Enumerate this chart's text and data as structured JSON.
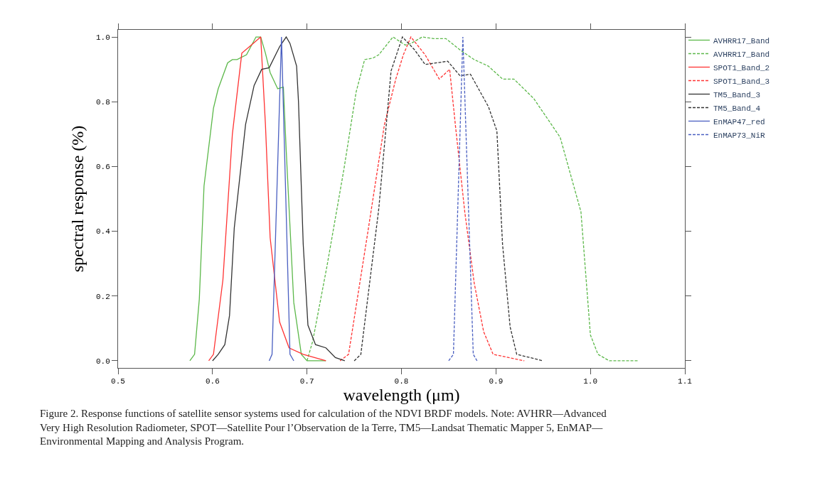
{
  "chart_data": {
    "type": "line",
    "xlabel": "wavelength (μm)",
    "ylabel": "spectral response (%)",
    "xlim": [
      0.5,
      1.1
    ],
    "xticks": [
      0.5,
      0.6,
      0.7,
      0.8,
      0.9,
      {
        "value": 1.0,
        "label": "1.0"
      },
      1.1
    ],
    "ylim": [
      -0.022,
      1.022
    ],
    "yticks": [
      {
        "value": 0,
        "label": "0.0"
      },
      0.2,
      0.4,
      0.6,
      0.8,
      {
        "value": 1.0,
        "label": "1.0"
      }
    ],
    "legend": "top right",
    "marker": "none",
    "series": [
      {
        "name": "AVHRR17_Band",
        "color": "#5cb84a",
        "line_style": "solid",
        "x": [
          0.576,
          0.581,
          0.586,
          0.591,
          0.601,
          0.606,
          0.616,
          0.621,
          0.626,
          0.636,
          0.646,
          0.651,
          0.656,
          0.661,
          0.669,
          0.675,
          0.678,
          0.686,
          0.694,
          0.7,
          0.72
        ],
        "values": [
          0,
          0.02,
          0.19,
          0.54,
          0.78,
          0.84,
          0.92,
          0.93,
          0.93,
          0.945,
          1.0,
          1.0,
          0.95,
          0.89,
          0.84,
          0.845,
          0.65,
          0.18,
          0.02,
          0,
          0
        ]
      },
      {
        "name": "AVHRR17_Band",
        "color": "#5cb84a",
        "line_style": "dashed",
        "x": [
          0.7,
          0.706,
          0.721,
          0.739,
          0.752,
          0.761,
          0.77,
          0.776,
          0.791,
          0.804,
          0.81,
          0.822,
          0.834,
          0.847,
          0.862,
          0.877,
          0.892,
          0.907,
          0.919,
          0.94,
          0.947,
          0.968,
          0.99,
          1.0,
          1.008,
          1.02,
          1.05
        ],
        "values": [
          0,
          0.06,
          0.29,
          0.59,
          0.83,
          0.93,
          0.935,
          0.945,
          1.0,
          0.975,
          0.98,
          1.0,
          0.995,
          0.995,
          0.96,
          0.93,
          0.91,
          0.87,
          0.87,
          0.81,
          0.78,
          0.69,
          0.46,
          0.08,
          0.02,
          0,
          0
        ]
      },
      {
        "name": "SPOT1_Band_2",
        "color": "#ff3333",
        "line_style": "solid",
        "x": [
          0.596,
          0.601,
          0.611,
          0.621,
          0.631,
          0.641,
          0.651,
          0.656,
          0.661,
          0.671,
          0.681,
          0.696,
          0.72
        ],
        "values": [
          0,
          0.02,
          0.25,
          0.7,
          0.95,
          0.975,
          1.0,
          0.73,
          0.38,
          0.12,
          0.04,
          0.02,
          0
        ]
      },
      {
        "name": "SPOT1_Band_3",
        "color": "#ff3333",
        "line_style": "dashed",
        "x": [
          0.735,
          0.744,
          0.764,
          0.782,
          0.794,
          0.802,
          0.81,
          0.825,
          0.84,
          0.851,
          0.857,
          0.867,
          0.877,
          0.887,
          0.897,
          0.93
        ],
        "values": [
          0,
          0.02,
          0.39,
          0.73,
          0.87,
          0.945,
          1.0,
          0.945,
          0.87,
          0.9,
          0.73,
          0.46,
          0.24,
          0.09,
          0.02,
          0
        ]
      },
      {
        "name": "TM5_Band_3",
        "color": "#333333",
        "line_style": "solid",
        "x": [
          0.6,
          0.606,
          0.613,
          0.618,
          0.623,
          0.635,
          0.644,
          0.652,
          0.66,
          0.671,
          0.678,
          0.682,
          0.689,
          0.691,
          0.696,
          0.701,
          0.709,
          0.72,
          0.73,
          0.74
        ],
        "values": [
          0,
          0.02,
          0.05,
          0.14,
          0.41,
          0.73,
          0.85,
          0.9,
          0.905,
          0.97,
          1.0,
          0.98,
          0.91,
          0.8,
          0.36,
          0.11,
          0.05,
          0.04,
          0.01,
          0
        ]
      },
      {
        "name": "TM5_Band_4",
        "color": "#333333",
        "line_style": "dashed",
        "x": [
          0.75,
          0.757,
          0.776,
          0.789,
          0.801,
          0.814,
          0.825,
          0.849,
          0.862,
          0.873,
          0.892,
          0.901,
          0.907,
          0.915,
          0.922,
          0.95
        ],
        "values": [
          0,
          0.02,
          0.47,
          0.895,
          1.0,
          0.96,
          0.915,
          0.925,
          0.88,
          0.885,
          0.785,
          0.71,
          0.36,
          0.105,
          0.02,
          0
        ]
      },
      {
        "name": "EnMAP47_red",
        "color": "#4a5fc1",
        "line_style": "solid",
        "x": [
          0.66,
          0.663,
          0.673,
          0.682,
          0.686
        ],
        "values": [
          0,
          0.02,
          1.0,
          0.02,
          0
        ]
      },
      {
        "name": "EnMAP73_NiR",
        "color": "#4a5fc1",
        "line_style": "dashed",
        "x": [
          0.85,
          0.855,
          0.865,
          0.876,
          0.88
        ],
        "values": [
          0,
          0.02,
          1.0,
          0.02,
          0
        ]
      }
    ],
    "annotations": [
      "Figure 2. Response functions of satellite sensor systems used for calculation of the NDVI BRDF models. Note: AVHRR—Advanced\nVery High Resolution Radiometer, SPOT—Satellite Pour l’Observation de la Terre, TM5—Landsat Thematic Mapper 5, EnMAP—\nEnvironmental Mapping and Analysis Program."
    ]
  }
}
